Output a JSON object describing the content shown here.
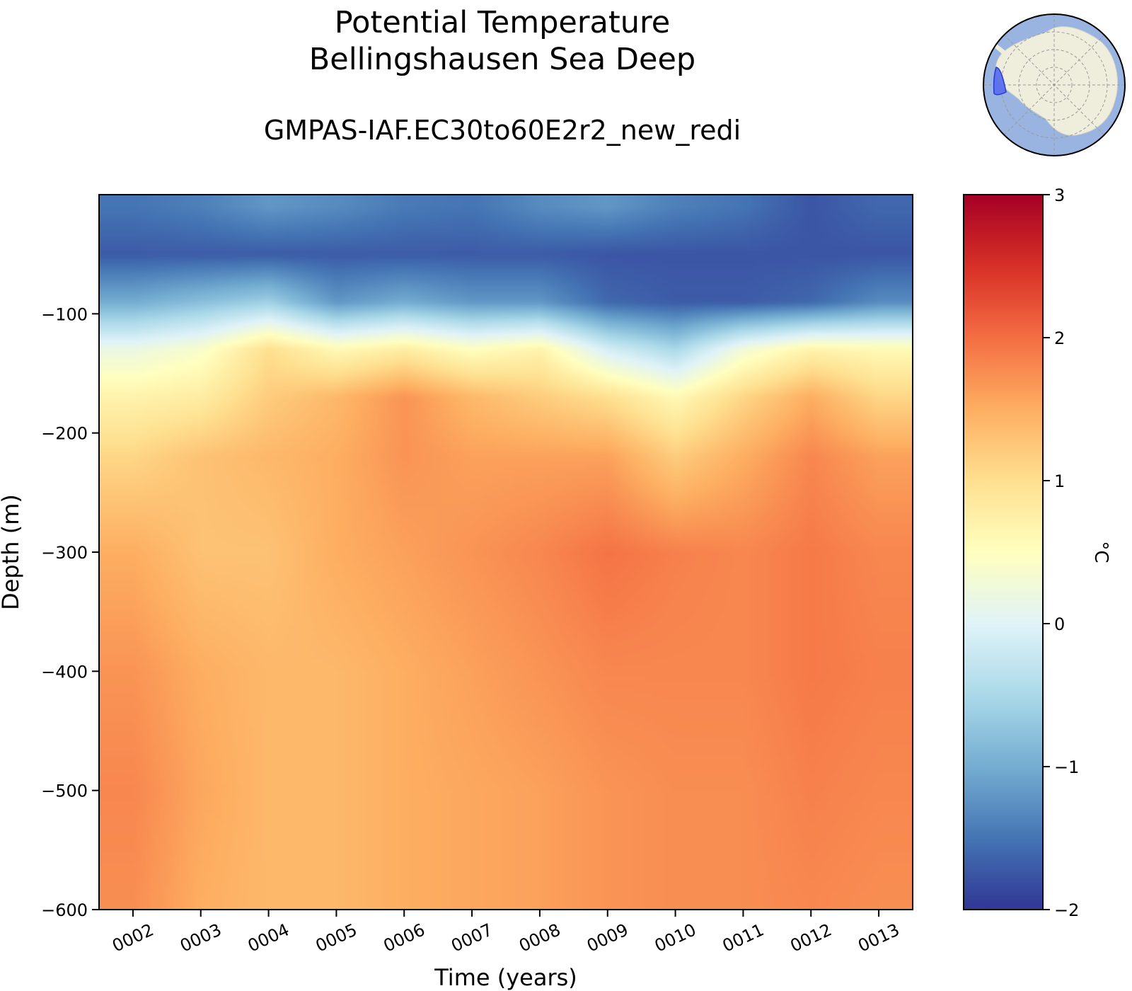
{
  "chart_data": {
    "type": "heatmap",
    "title": "Potential Temperature",
    "subtitle": "Bellingshausen Sea Deep",
    "run_name": "GMPAS-IAF.EC30to60E2r2_new_redi",
    "xlabel": "Time (years)",
    "ylabel": "Depth (m)",
    "xlim": [
      1.5,
      13.5
    ],
    "ylim": [
      -600,
      0
    ],
    "x_ticks": [
      "0002",
      "0003",
      "0004",
      "0005",
      "0006",
      "0007",
      "0008",
      "0009",
      "0010",
      "0011",
      "0012",
      "0013"
    ],
    "y_ticks": [
      -100,
      -200,
      -300,
      -400,
      -500,
      -600
    ],
    "y_tick_labels": [
      "−100",
      "−200",
      "−300",
      "−400",
      "−500",
      "−600"
    ],
    "colorbar": {
      "label": "°C",
      "range": [
        -2,
        3
      ],
      "ticks": [
        3,
        2,
        1,
        0,
        -1,
        -2
      ],
      "tick_labels": [
        "3",
        "2",
        "1",
        "0",
        "−1",
        "−2"
      ],
      "colormap": "RdYlBu_r",
      "colors": [
        "#313695",
        "#4575b4",
        "#74add1",
        "#abd9e9",
        "#e0f3f8",
        "#ffffbf",
        "#fee090",
        "#fdae61",
        "#f46d43",
        "#d73027",
        "#a50026"
      ]
    },
    "years": [
      2,
      3,
      4,
      5,
      6,
      7,
      8,
      9,
      10,
      11,
      12,
      13
    ],
    "depths": [
      -10,
      -50,
      -90,
      -130,
      -170,
      -220,
      -300,
      -400,
      -500,
      -590
    ],
    "values": [
      [
        -1.5,
        -1.4,
        -1.2,
        -1.3,
        -1.45,
        -1.5,
        -1.3,
        -1.2,
        -1.4,
        -1.5,
        -1.75,
        -1.6
      ],
      [
        -1.7,
        -1.7,
        -1.7,
        -1.7,
        -1.7,
        -1.7,
        -1.7,
        -1.75,
        -1.75,
        -1.75,
        -1.75,
        -1.75
      ],
      [
        -1.0,
        -0.8,
        -0.6,
        -1.2,
        -1.0,
        -1.2,
        -1.2,
        -1.6,
        -1.7,
        -1.7,
        -1.6,
        -1.3
      ],
      [
        0.2,
        0.4,
        1.0,
        0.6,
        0.8,
        0.5,
        0.7,
        -0.1,
        -0.5,
        0.3,
        0.7,
        0.6
      ],
      [
        0.7,
        0.8,
        1.2,
        1.4,
        1.7,
        1.4,
        1.2,
        1.0,
        0.6,
        1.1,
        1.5,
        1.1
      ],
      [
        1.1,
        1.3,
        1.4,
        1.5,
        1.7,
        1.6,
        1.6,
        1.6,
        1.2,
        1.5,
        1.8,
        1.6
      ],
      [
        1.5,
        1.3,
        1.3,
        1.5,
        1.6,
        1.7,
        1.8,
        1.95,
        1.85,
        1.8,
        1.9,
        1.8
      ],
      [
        1.7,
        1.5,
        1.4,
        1.4,
        1.5,
        1.6,
        1.7,
        1.8,
        1.8,
        1.8,
        1.9,
        1.85
      ],
      [
        1.8,
        1.55,
        1.4,
        1.4,
        1.5,
        1.55,
        1.6,
        1.7,
        1.75,
        1.75,
        1.85,
        1.8
      ],
      [
        1.75,
        1.5,
        1.4,
        1.4,
        1.5,
        1.55,
        1.6,
        1.7,
        1.75,
        1.75,
        1.8,
        1.75
      ]
    ]
  },
  "inset_map": {
    "description_icon": "antarctica-inset-map-icon",
    "ocean_color": "#99b4e0",
    "land_color": "#efeddc",
    "region_color": "#5b6ef0"
  }
}
